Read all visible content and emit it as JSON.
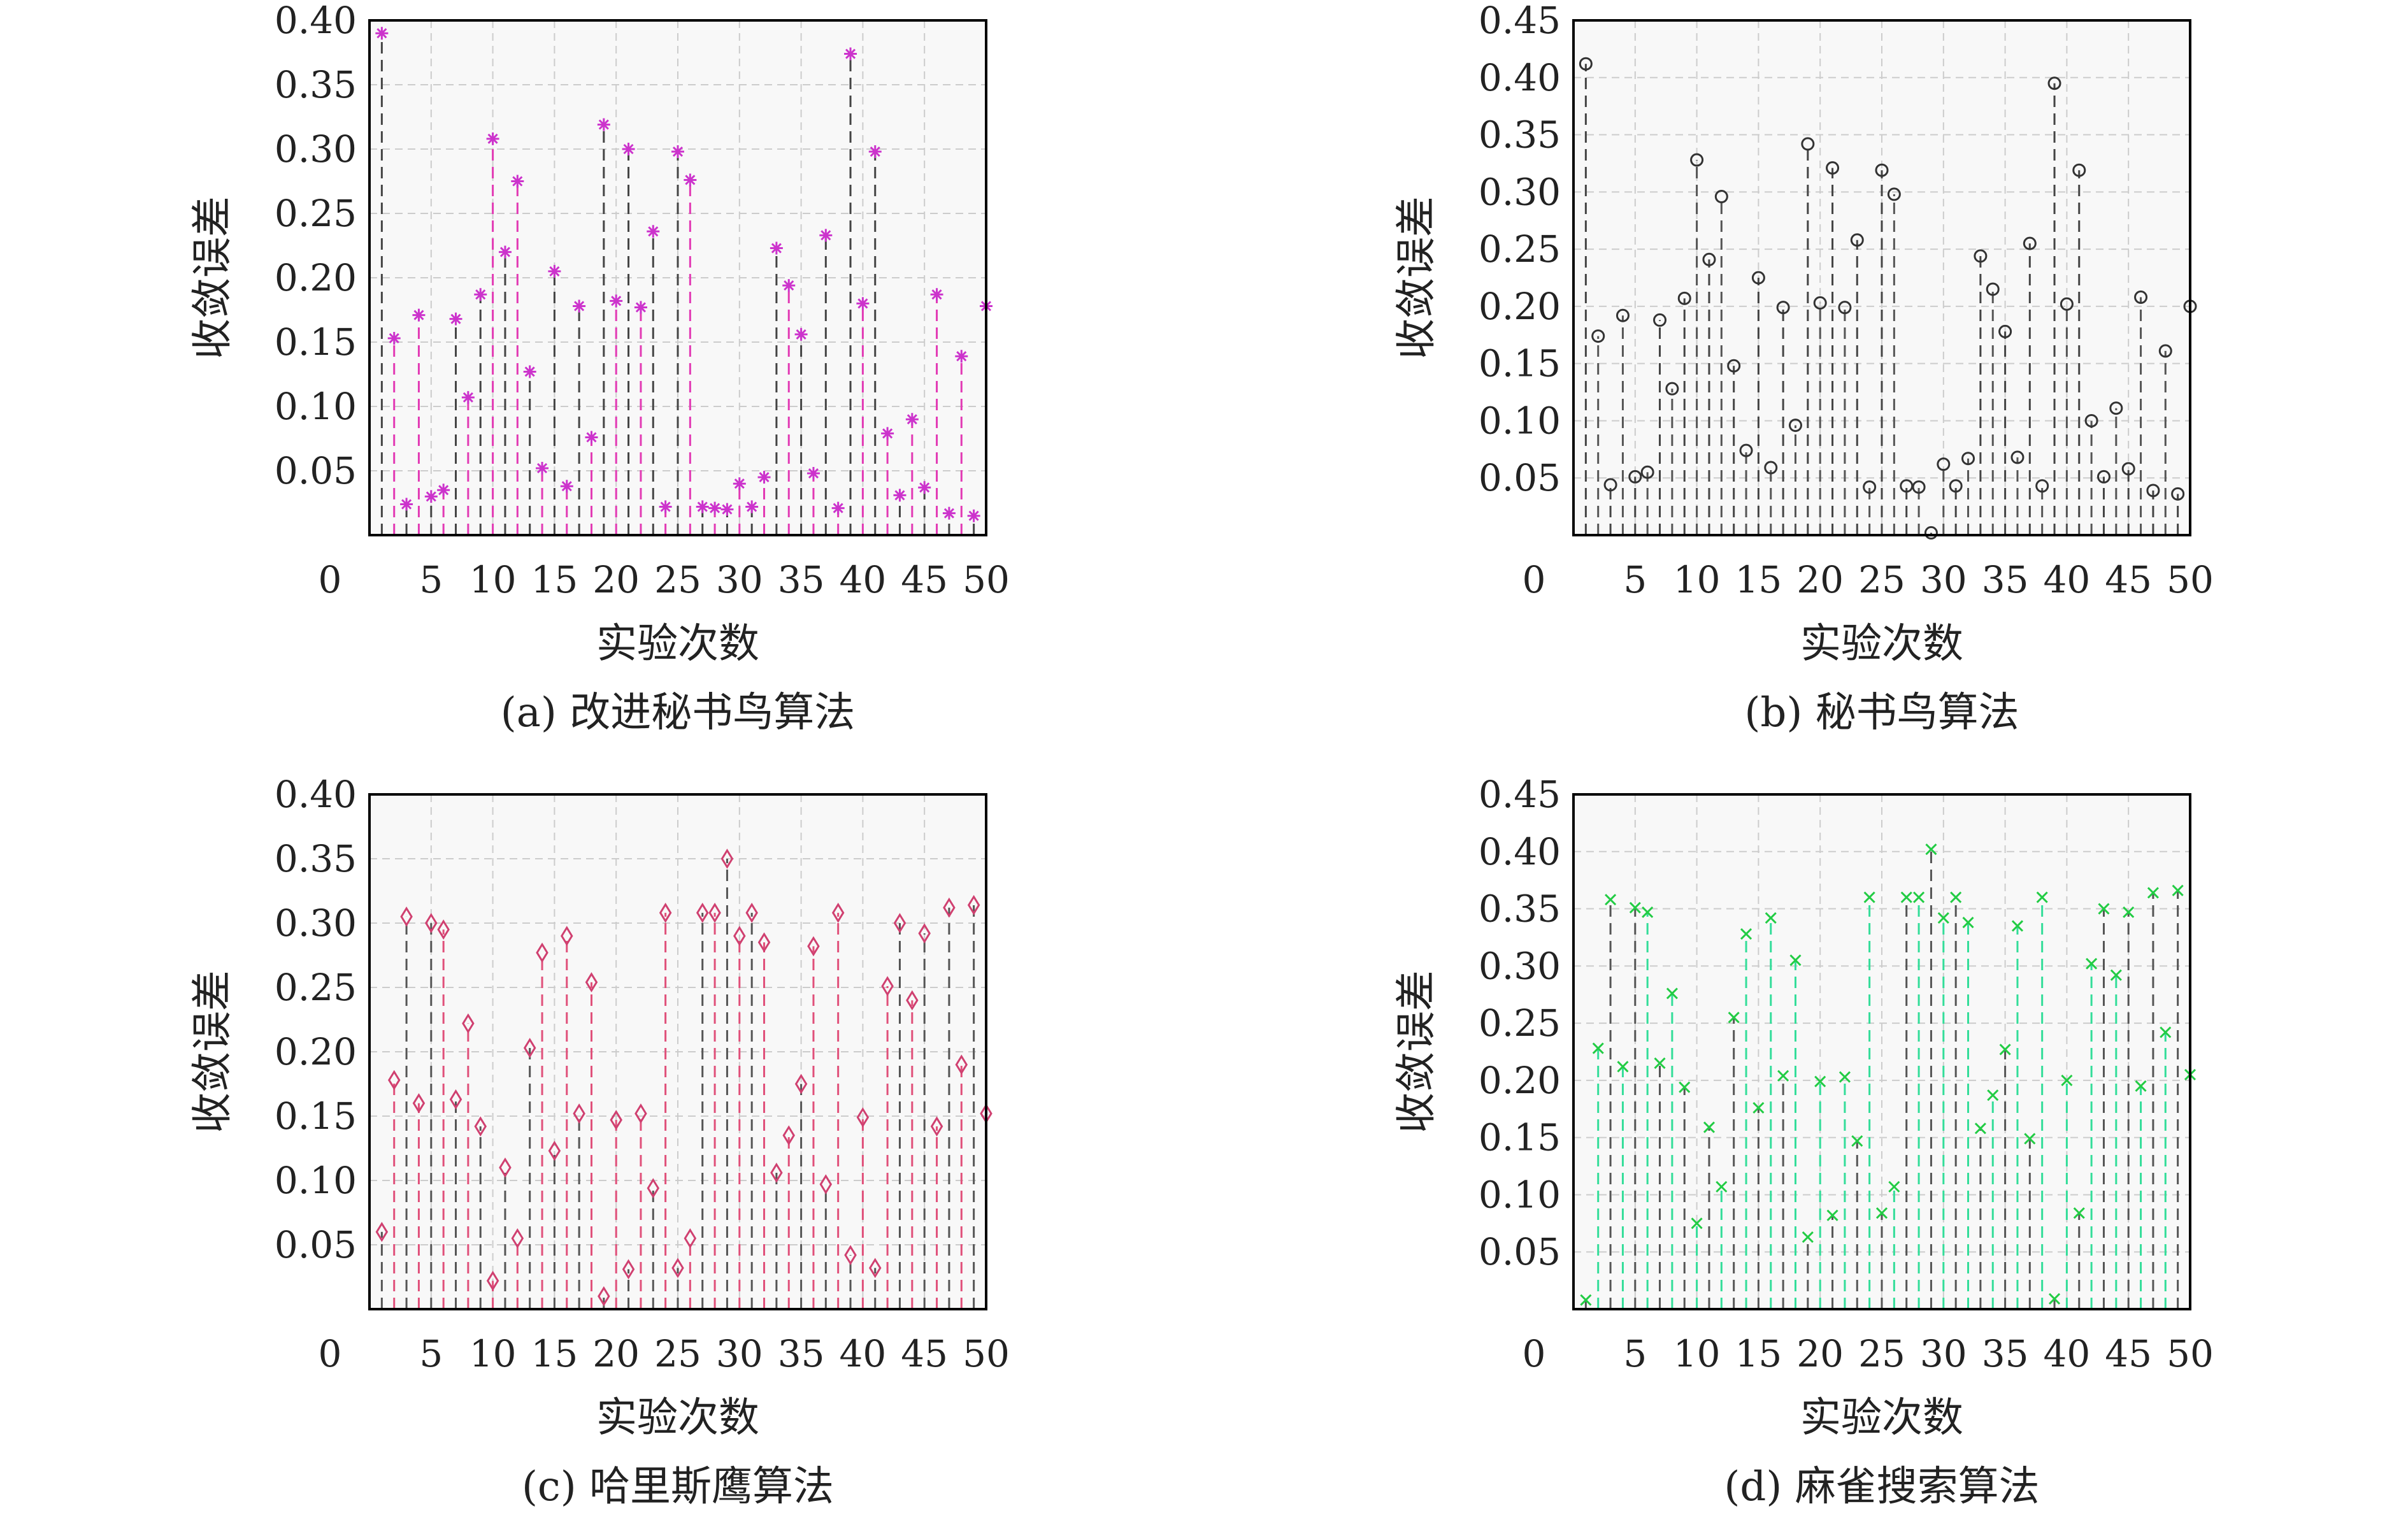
{
  "chart_data": [
    {
      "type": "stem",
      "caption": "(a) 改进秘书鸟算法",
      "xlabel": "实验次数",
      "ylabel": "收敛误差",
      "xlim": [
        0,
        50
      ],
      "ylim": [
        0,
        0.4
      ],
      "xticks": [
        "0",
        "5",
        "10",
        "15",
        "20",
        "25",
        "30",
        "35",
        "40",
        "45",
        "50"
      ],
      "yticks": [
        "0.05",
        "0.10",
        "0.15",
        "0.20",
        "0.25",
        "0.30",
        "0.35",
        "0.40"
      ],
      "grid": true,
      "marker": "asterisk",
      "marker_color": "#cc33cc",
      "stem_colors": [
        "#444444",
        "#e23ab4"
      ],
      "x": [
        1,
        2,
        3,
        4,
        5,
        6,
        7,
        8,
        9,
        10,
        11,
        12,
        13,
        14,
        15,
        16,
        17,
        18,
        19,
        20,
        21,
        22,
        23,
        24,
        25,
        26,
        27,
        28,
        29,
        30,
        31,
        32,
        33,
        34,
        35,
        36,
        37,
        38,
        39,
        40,
        41,
        42,
        43,
        44,
        45,
        46,
        47,
        48,
        49,
        50
      ],
      "y": [
        0.39,
        0.153,
        0.024,
        0.171,
        0.03,
        0.035,
        0.168,
        0.107,
        0.187,
        0.308,
        0.22,
        0.275,
        0.127,
        0.052,
        0.205,
        0.038,
        0.178,
        0.076,
        0.319,
        0.182,
        0.3,
        0.177,
        0.236,
        0.022,
        0.298,
        0.276,
        0.022,
        0.021,
        0.02,
        0.04,
        0.022,
        0.045,
        0.223,
        0.194,
        0.156,
        0.048,
        0.233,
        0.021,
        0.374,
        0.18,
        0.298,
        0.079,
        0.031,
        0.09,
        0.037,
        0.187,
        0.017,
        0.139,
        0.015,
        0.178
      ]
    },
    {
      "type": "stem",
      "caption": "(b) 秘书鸟算法",
      "xlabel": "实验次数",
      "ylabel": "收敛误差",
      "xlim": [
        0,
        50
      ],
      "ylim": [
        0,
        0.45
      ],
      "xticks": [
        "0",
        "5",
        "10",
        "15",
        "20",
        "25",
        "30",
        "35",
        "40",
        "45",
        "50"
      ],
      "yticks": [
        "0.05",
        "0.10",
        "0.15",
        "0.20",
        "0.25",
        "0.30",
        "0.35",
        "0.40",
        "0.45"
      ],
      "grid": true,
      "marker": "circle",
      "marker_color": "#333333",
      "stem_colors": [
        "#444444",
        "#555555"
      ],
      "x": [
        1,
        2,
        3,
        4,
        5,
        6,
        7,
        8,
        9,
        10,
        11,
        12,
        13,
        14,
        15,
        16,
        17,
        18,
        19,
        20,
        21,
        22,
        23,
        24,
        25,
        26,
        27,
        28,
        29,
        30,
        31,
        32,
        33,
        34,
        35,
        36,
        37,
        38,
        39,
        40,
        41,
        42,
        43,
        44,
        45,
        46,
        47,
        48,
        49,
        50
      ],
      "y": [
        0.412,
        0.174,
        0.044,
        0.192,
        0.051,
        0.055,
        0.188,
        0.128,
        0.207,
        0.328,
        0.241,
        0.296,
        0.148,
        0.074,
        0.225,
        0.059,
        0.199,
        0.096,
        0.342,
        0.203,
        0.321,
        0.199,
        0.258,
        0.042,
        0.319,
        0.298,
        0.043,
        0.042,
        0.002,
        0.062,
        0.043,
        0.067,
        0.244,
        0.215,
        0.178,
        0.068,
        0.255,
        0.043,
        0.395,
        0.202,
        0.319,
        0.1,
        0.051,
        0.111,
        0.058,
        0.208,
        0.039,
        0.161,
        0.036,
        0.2
      ]
    },
    {
      "type": "stem",
      "caption": "(c) 哈里斯鹰算法",
      "xlabel": "实验次数",
      "ylabel": "收敛误差",
      "xlim": [
        0,
        50
      ],
      "ylim": [
        0,
        0.4
      ],
      "xticks": [
        "0",
        "5",
        "10",
        "15",
        "20",
        "25",
        "30",
        "35",
        "40",
        "45",
        "50"
      ],
      "yticks": [
        "0.05",
        "0.10",
        "0.15",
        "0.20",
        "0.25",
        "0.30",
        "0.35",
        "0.40"
      ],
      "grid": true,
      "marker": "diamond",
      "marker_color": "#d04070",
      "stem_colors": [
        "#555555",
        "#e0507a"
      ],
      "x": [
        1,
        2,
        3,
        4,
        5,
        6,
        7,
        8,
        9,
        10,
        11,
        12,
        13,
        14,
        15,
        16,
        17,
        18,
        19,
        20,
        21,
        22,
        23,
        24,
        25,
        26,
        27,
        28,
        29,
        30,
        31,
        32,
        33,
        34,
        35,
        36,
        37,
        38,
        39,
        40,
        41,
        42,
        43,
        44,
        45,
        46,
        47,
        48,
        49,
        50
      ],
      "y": [
        0.06,
        0.178,
        0.305,
        0.16,
        0.3,
        0.295,
        0.163,
        0.222,
        0.142,
        0.022,
        0.11,
        0.055,
        0.203,
        0.277,
        0.123,
        0.29,
        0.152,
        0.254,
        0.01,
        0.147,
        0.031,
        0.152,
        0.094,
        0.308,
        0.032,
        0.055,
        0.308,
        0.308,
        0.35,
        0.29,
        0.308,
        0.285,
        0.106,
        0.135,
        0.175,
        0.282,
        0.097,
        0.308,
        0.042,
        0.149,
        0.032,
        0.251,
        0.3,
        0.24,
        0.292,
        0.142,
        0.312,
        0.19,
        0.314,
        0.152
      ]
    },
    {
      "type": "stem",
      "caption": "(d) 麻雀搜索算法",
      "xlabel": "实验次数",
      "ylabel": "收敛误差",
      "xlim": [
        0,
        50
      ],
      "ylim": [
        0,
        0.45
      ],
      "xticks": [
        "0",
        "5",
        "10",
        "15",
        "20",
        "25",
        "30",
        "35",
        "40",
        "45",
        "50"
      ],
      "yticks": [
        "0.05",
        "0.10",
        "0.15",
        "0.20",
        "0.25",
        "0.30",
        "0.35",
        "0.40",
        "0.45"
      ],
      "grid": true,
      "marker": "cross",
      "marker_color": "#22cc44",
      "stem_colors": [
        "#555555",
        "#33dd99"
      ],
      "x": [
        1,
        2,
        3,
        4,
        5,
        6,
        7,
        8,
        9,
        10,
        11,
        12,
        13,
        14,
        15,
        16,
        17,
        18,
        19,
        20,
        21,
        22,
        23,
        24,
        25,
        26,
        27,
        28,
        29,
        30,
        31,
        32,
        33,
        34,
        35,
        36,
        37,
        38,
        39,
        40,
        41,
        42,
        43,
        44,
        45,
        46,
        47,
        48,
        49,
        50
      ],
      "y": [
        0.008,
        0.228,
        0.358,
        0.212,
        0.351,
        0.347,
        0.215,
        0.276,
        0.194,
        0.075,
        0.159,
        0.107,
        0.255,
        0.328,
        0.176,
        0.342,
        0.204,
        0.305,
        0.063,
        0.199,
        0.082,
        0.203,
        0.147,
        0.36,
        0.084,
        0.107,
        0.36,
        0.36,
        0.402,
        0.342,
        0.36,
        0.338,
        0.158,
        0.187,
        0.227,
        0.335,
        0.149,
        0.36,
        0.009,
        0.2,
        0.084,
        0.302,
        0.35,
        0.292,
        0.347,
        0.195,
        0.364,
        0.242,
        0.366,
        0.205
      ]
    }
  ]
}
